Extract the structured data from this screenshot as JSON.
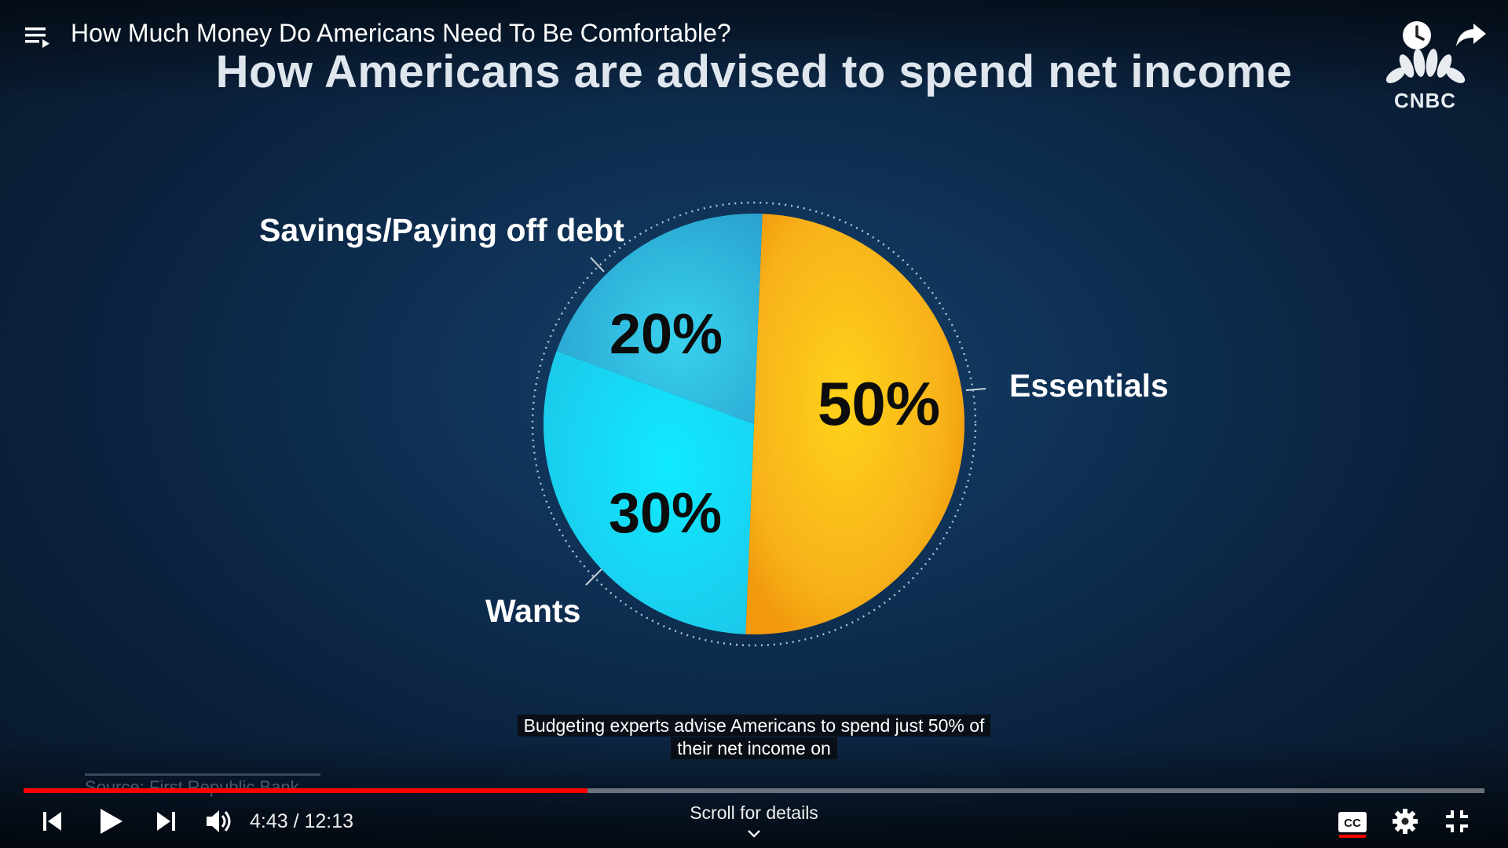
{
  "player": {
    "video_title": "How Much Money Do Americans Need To Be Comfortable?",
    "time_current": "4:43",
    "time_total": "12:13",
    "time_display": "4:43 / 12:13",
    "progress_fraction": 0.386,
    "scroll_hint": "Scroll for details",
    "caption_line1": "Budgeting experts advise Americans to spend just 50% of",
    "caption_line2": "their net income on",
    "icons": [
      "playlist-icon",
      "watch-later-icon",
      "share-icon",
      "previous-icon",
      "play-icon",
      "next-icon",
      "volume-icon",
      "chevron-down-icon",
      "captions-icon",
      "settings-icon",
      "exit-fullscreen-icon"
    ]
  },
  "slide": {
    "title": "How Americans are advised to spend net income",
    "logo_text": "CNBC",
    "source": "Source: First Republic Bank"
  },
  "chart_data": {
    "type": "pie",
    "title": "How Americans are advised to spend net income",
    "slices": [
      {
        "label": "Essentials",
        "value": 50,
        "display": "50%",
        "color": "#f7b21a"
      },
      {
        "label": "Wants",
        "value": 30,
        "display": "30%",
        "color": "#1fd8f0"
      },
      {
        "label": "Savings/Paying off debt",
        "value": 20,
        "display": "20%",
        "color": "#26b2db"
      }
    ]
  },
  "colors": {
    "progress": "#ff0000",
    "background": "#0e2f52"
  }
}
